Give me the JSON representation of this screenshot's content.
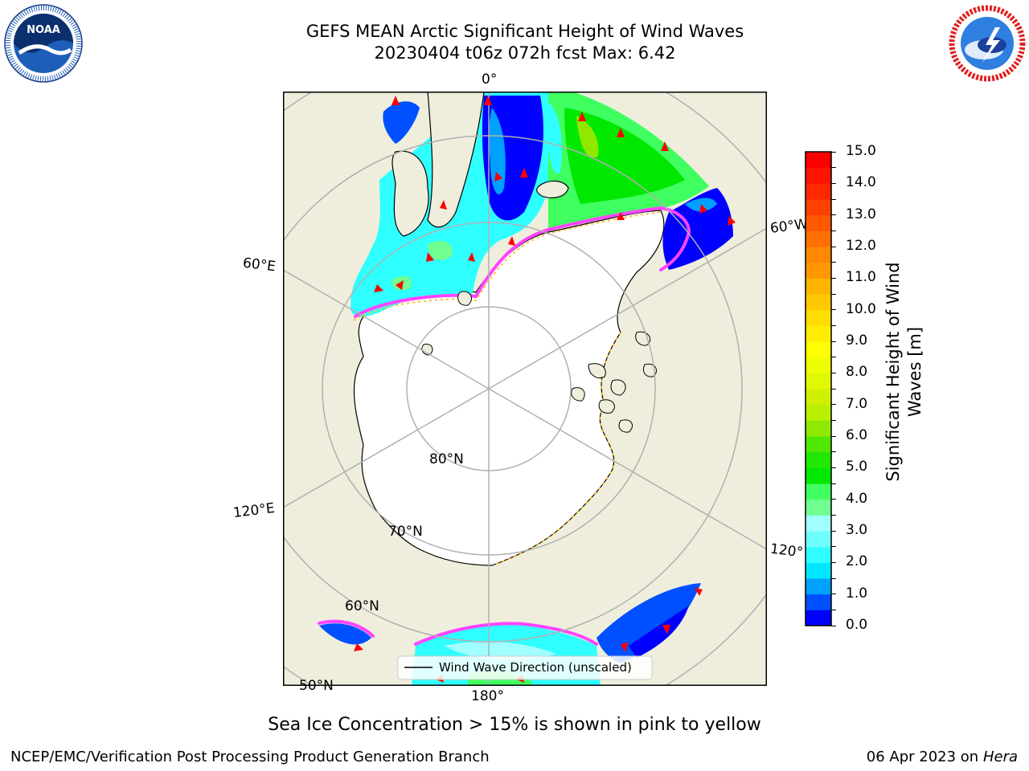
{
  "title": {
    "line1": "GEFS MEAN Arctic Significant Height of Wind Waves",
    "line2": "20230404 t06z 072h fcst   Max: 6.42"
  },
  "logos": {
    "noaa": {
      "text": "NOAA",
      "ring_text": "NATIONAL OCEANIC AND ATMOSPHERIC ADMINISTRATION · U.S. DEPARTMENT OF COMMERCE"
    },
    "nws": {
      "ring_text": "NATIONAL WEATHER SERVICE"
    }
  },
  "map": {
    "projection": "north polar stereographic",
    "longitude_labels": {
      "top": "0°",
      "right_upper": "60°W",
      "left_upper": "60°E",
      "left_lower": "120°E",
      "right_lower": "120°",
      "bottom": "180°"
    },
    "latitude_labels": {
      "lat80": "80°N",
      "lat70": "70°N",
      "lat60": "60°N",
      "lat50": "50°N"
    },
    "colors": {
      "land": "#efeedd",
      "ice_edge": "#ff44ff",
      "arrow": "#ff0000",
      "grid": "#b0b0b0"
    },
    "legend": {
      "label": "Wind Wave Direction (unscaled)"
    }
  },
  "colorbar": {
    "label_line1": "Significant Height of Wind",
    "label_line2": "Waves [m]",
    "ticks": [
      "0.0",
      "0.5",
      "1.0",
      "1.5",
      "2.0",
      "2.5",
      "3.0",
      "3.5",
      "4.0",
      "4.5",
      "5.0",
      "5.5",
      "6.0",
      "6.5",
      "7.0",
      "7.5",
      "8.0",
      "8.5",
      "9.0",
      "9.5",
      "10.0",
      "10.5",
      "11.0",
      "11.5",
      "12.0",
      "12.5",
      "13.0",
      "13.5",
      "14.0",
      "14.5",
      "15.0"
    ],
    "colors": [
      "#0000ff",
      "#0050ff",
      "#00a0ff",
      "#00e8ff",
      "#30ffff",
      "#70ffff",
      "#a0ffff",
      "#70ff90",
      "#40ff60",
      "#00e800",
      "#20e800",
      "#50e800",
      "#90e800",
      "#b8f000",
      "#d0f000",
      "#e0f800",
      "#eeff00",
      "#ffff00",
      "#ffee00",
      "#ffdd00",
      "#ffc800",
      "#ffb400",
      "#ff9800",
      "#ff8800",
      "#ff7000",
      "#ff5800",
      "#ff4000",
      "#ff2800",
      "#ff1400",
      "#ff0000"
    ],
    "vmin": 0.0,
    "vmax": 15.0
  },
  "sea_ice_note": "Sea Ice Concentration > 15% is shown in pink to yellow",
  "footer": {
    "left": "NCEP/EMC/Verification Post Processing Product Generation Branch",
    "right_date": "06 Apr 2023 on ",
    "right_host": "Hera"
  }
}
